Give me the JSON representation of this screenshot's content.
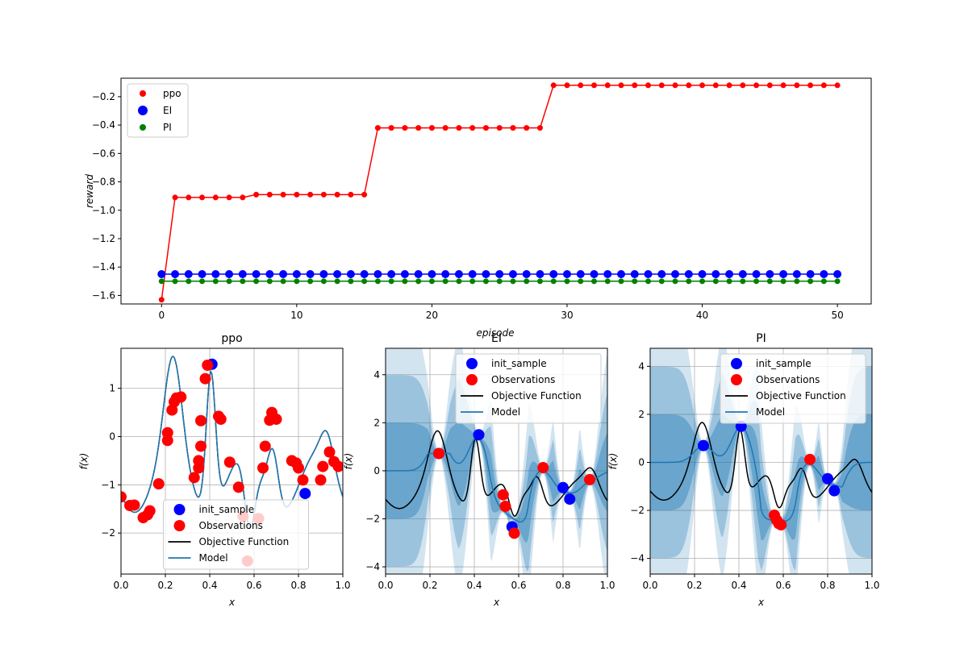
{
  "chart_data": [
    {
      "type": "line",
      "xlabel": "episode",
      "ylabel": "reward",
      "xlim": [
        -3,
        52.5
      ],
      "ylim": [
        -1.66,
        -0.07
      ],
      "xticks": [
        "0",
        "10",
        "20",
        "30",
        "40",
        "50"
      ],
      "yticks": [
        "-1.6",
        "-1.4",
        "-1.2",
        "-1.0",
        "-0.8",
        "-0.6",
        "-0.4",
        "-0.2"
      ],
      "grid": false,
      "legend_position": "upper-left",
      "x": [
        0,
        1,
        2,
        3,
        4,
        5,
        6,
        7,
        8,
        9,
        10,
        11,
        12,
        13,
        14,
        15,
        16,
        17,
        18,
        19,
        20,
        21,
        22,
        23,
        24,
        25,
        26,
        27,
        28,
        29,
        30,
        31,
        32,
        33,
        34,
        35,
        36,
        37,
        38,
        39,
        40,
        41,
        42,
        43,
        44,
        45,
        46,
        47,
        48,
        49,
        50
      ],
      "series": [
        {
          "name": "ppo",
          "color": "#ff0000",
          "marker_size": "small",
          "values": [
            -1.63,
            -0.91,
            -0.91,
            -0.91,
            -0.91,
            -0.91,
            -0.91,
            -0.89,
            -0.89,
            -0.89,
            -0.89,
            -0.89,
            -0.89,
            -0.89,
            -0.89,
            -0.89,
            -0.42,
            -0.42,
            -0.42,
            -0.42,
            -0.42,
            -0.42,
            -0.42,
            -0.42,
            -0.42,
            -0.42,
            -0.42,
            -0.42,
            -0.42,
            -0.12,
            -0.12,
            -0.12,
            -0.12,
            -0.12,
            -0.12,
            -0.12,
            -0.12,
            -0.12,
            -0.12,
            -0.12,
            -0.12,
            -0.12,
            -0.12,
            -0.12,
            -0.12,
            -0.12,
            -0.12,
            -0.12,
            -0.12,
            -0.12,
            -0.12
          ]
        },
        {
          "name": "EI",
          "color": "#0000ff",
          "marker_size": "large",
          "constant": -1.45
        },
        {
          "name": "PI",
          "color": "#008000",
          "marker_size": "small",
          "constant": -1.5
        }
      ]
    },
    {
      "type": "line",
      "title": "ppo",
      "xlabel": "x",
      "ylabel": "f(x)",
      "xlim": [
        0,
        1
      ],
      "ylim": [
        -2.85,
        1.83
      ],
      "xticks": [
        "0.0",
        "0.2",
        "0.4",
        "0.6",
        "0.8",
        "1.0"
      ],
      "yticks": [
        "-2",
        "-1",
        "0",
        "1"
      ],
      "grid": true,
      "legend_position": "lower-center",
      "model_band": false,
      "init_sample": [
        [
          0.41,
          1.5
        ],
        [
          0.83,
          -1.18
        ]
      ],
      "observations": [
        [
          0.0,
          -1.25
        ],
        [
          0.04,
          -1.43
        ],
        [
          0.06,
          -1.42
        ],
        [
          0.1,
          -1.68
        ],
        [
          0.12,
          -1.62
        ],
        [
          0.13,
          -1.54
        ],
        [
          0.17,
          -0.98
        ],
        [
          0.21,
          -0.08
        ],
        [
          0.21,
          0.08
        ],
        [
          0.23,
          0.55
        ],
        [
          0.24,
          0.72
        ],
        [
          0.25,
          0.8
        ],
        [
          0.27,
          0.82
        ],
        [
          0.33,
          -0.85
        ],
        [
          0.35,
          -0.65
        ],
        [
          0.35,
          -0.5
        ],
        [
          0.36,
          -0.2
        ],
        [
          0.36,
          0.33
        ],
        [
          0.38,
          1.2
        ],
        [
          0.39,
          1.48
        ],
        [
          0.44,
          0.42
        ],
        [
          0.45,
          0.36
        ],
        [
          0.49,
          -0.53
        ],
        [
          0.53,
          -1.05
        ],
        [
          0.55,
          -1.65
        ],
        [
          0.57,
          -2.58
        ],
        [
          0.62,
          -1.7
        ],
        [
          0.64,
          -0.65
        ],
        [
          0.65,
          -0.2
        ],
        [
          0.67,
          0.34
        ],
        [
          0.68,
          0.5
        ],
        [
          0.7,
          0.36
        ],
        [
          0.77,
          -0.5
        ],
        [
          0.79,
          -0.55
        ],
        [
          0.8,
          -0.65
        ],
        [
          0.82,
          -0.9
        ],
        [
          0.9,
          -0.9
        ],
        [
          0.91,
          -0.62
        ],
        [
          0.94,
          -0.32
        ],
        [
          0.96,
          -0.52
        ],
        [
          0.98,
          -0.62
        ]
      ],
      "legend": [
        "init_sample",
        "Observations",
        "Objective Function",
        "Model"
      ]
    },
    {
      "type": "line",
      "title": "EI",
      "xlabel": "x",
      "ylabel": "f(x)",
      "xlim": [
        0,
        1
      ],
      "ylim": [
        -4.3,
        5.1
      ],
      "xticks": [
        "0.0",
        "0.2",
        "0.4",
        "0.6",
        "0.8",
        "1.0"
      ],
      "yticks": [
        "-4",
        "-2",
        "0",
        "2",
        "4"
      ],
      "grid": true,
      "legend_position": "upper-right",
      "model_band": true,
      "init_sample": [
        [
          0.24,
          0.72
        ],
        [
          0.42,
          1.5
        ],
        [
          0.57,
          -2.33
        ],
        [
          0.8,
          -0.7
        ],
        [
          0.83,
          -1.18
        ]
      ],
      "observations": [
        [
          0.24,
          0.72
        ],
        [
          0.53,
          -1.0
        ],
        [
          0.54,
          -1.48
        ],
        [
          0.58,
          -2.6
        ],
        [
          0.71,
          0.13
        ],
        [
          0.92,
          -0.37
        ]
      ],
      "legend": [
        "init_sample",
        "Observations",
        "Objective Function",
        "Model"
      ]
    },
    {
      "type": "line",
      "title": "PI",
      "xlabel": "x",
      "ylabel": "f(x)",
      "xlim": [
        0,
        1
      ],
      "ylim": [
        -4.65,
        4.75
      ],
      "xticks": [
        "0.0",
        "0.2",
        "0.4",
        "0.6",
        "0.8",
        "1.0"
      ],
      "yticks": [
        "-4",
        "-2",
        "0",
        "2",
        "4"
      ],
      "grid": true,
      "legend_position": "upper-right",
      "model_band": true,
      "init_sample": [
        [
          0.24,
          0.7
        ],
        [
          0.41,
          1.5
        ],
        [
          0.8,
          -0.68
        ],
        [
          0.83,
          -1.18
        ]
      ],
      "observations": [
        [
          0.56,
          -2.2
        ],
        [
          0.57,
          -2.4
        ],
        [
          0.58,
          -2.55
        ],
        [
          0.59,
          -2.6
        ],
        [
          0.72,
          0.12
        ]
      ],
      "legend": [
        "init_sample",
        "Observations",
        "Objective Function",
        "Model"
      ]
    }
  ]
}
